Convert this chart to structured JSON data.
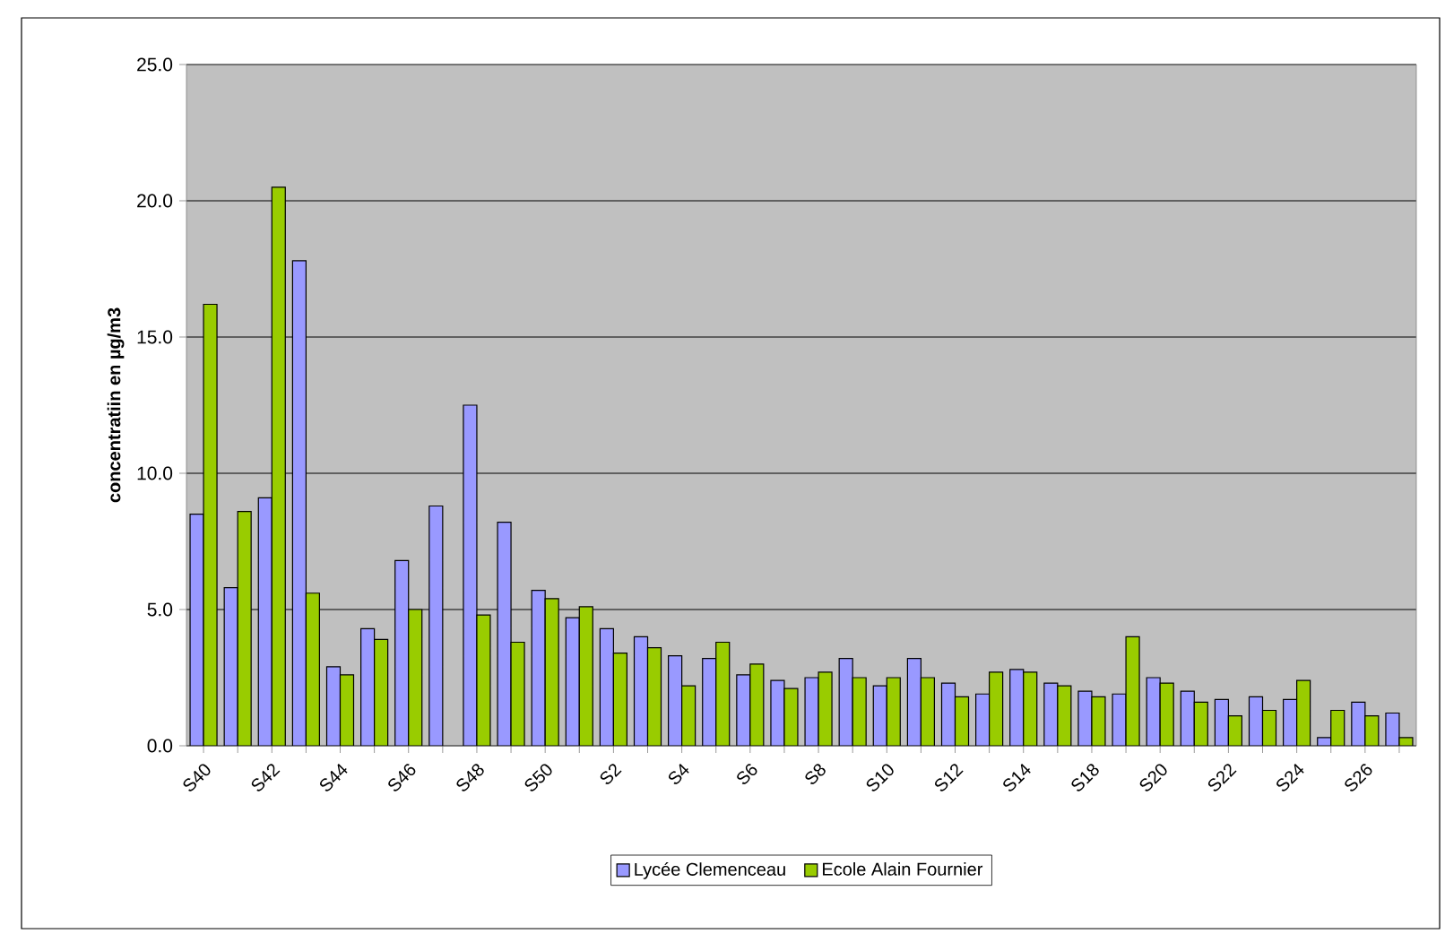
{
  "chart_data": {
    "type": "bar",
    "ylabel": "concentratiin en µg/m3",
    "categories": [
      "S40",
      null,
      "S42",
      null,
      "S44",
      null,
      "S46",
      null,
      "S48",
      null,
      "S50",
      null,
      "S2",
      null,
      "S4",
      null,
      "S6",
      null,
      "S8",
      null,
      "S10",
      null,
      "S12",
      null,
      "S14",
      null,
      "S18",
      null,
      "S20",
      null,
      "S22",
      null,
      "S24",
      null,
      "S26",
      null
    ],
    "series": [
      {
        "name": "Lycée Clemenceau",
        "color": "#9999ff",
        "values": [
          8.5,
          5.8,
          9.1,
          17.8,
          2.9,
          4.3,
          6.8,
          8.8,
          12.5,
          8.2,
          5.7,
          4.7,
          4.3,
          4.0,
          3.3,
          3.2,
          2.6,
          2.4,
          2.5,
          3.2,
          2.2,
          3.2,
          2.3,
          1.9,
          2.8,
          2.3,
          2.0,
          1.9,
          2.5,
          2.0,
          1.7,
          1.8,
          1.7,
          0.3,
          1.6,
          1.2
        ]
      },
      {
        "name": "Ecole Alain Fournier",
        "color": "#99cc00",
        "values": [
          16.2,
          8.6,
          20.5,
          5.6,
          2.6,
          3.9,
          5.0,
          null,
          4.8,
          3.8,
          5.4,
          5.1,
          3.4,
          3.6,
          2.2,
          3.8,
          3.0,
          2.1,
          2.7,
          2.5,
          2.5,
          2.5,
          1.8,
          2.7,
          2.7,
          2.2,
          1.8,
          4.0,
          2.3,
          1.6,
          1.1,
          1.3,
          2.4,
          1.3,
          1.1,
          0.3
        ]
      }
    ],
    "ylim": [
      0,
      25
    ],
    "yticks": [
      {
        "value": 0,
        "label": "0.0"
      },
      {
        "value": 5,
        "label": "5.0"
      },
      {
        "value": 10,
        "label": "10.0"
      },
      {
        "value": 15,
        "label": "15.0"
      },
      {
        "value": 20,
        "label": "20.0"
      },
      {
        "value": 25,
        "label": "25.0"
      }
    ],
    "grid": "y",
    "legend": "bottom"
  }
}
